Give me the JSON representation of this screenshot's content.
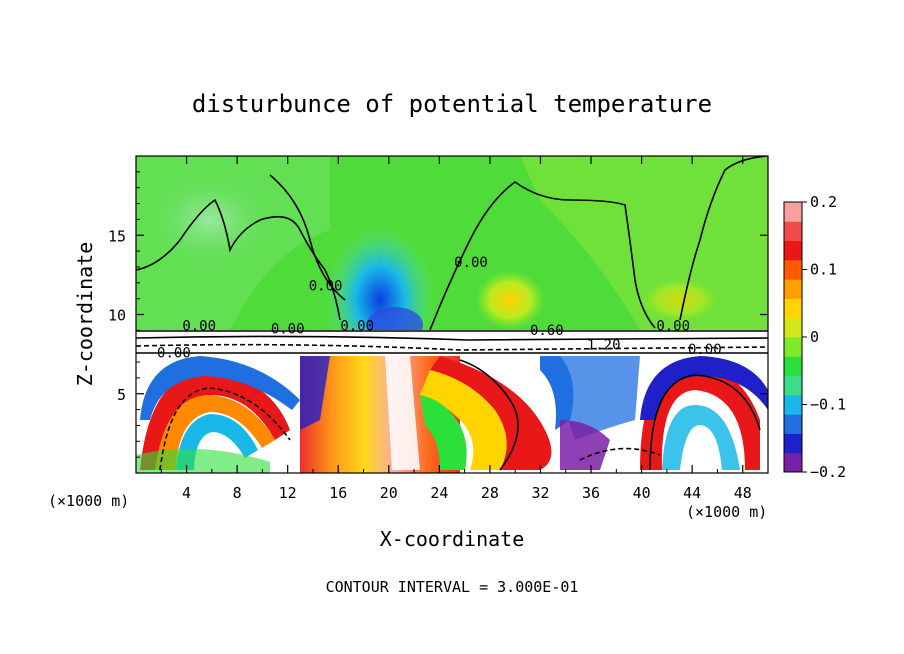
{
  "chart_data": {
    "type": "heatmap",
    "title": "disturbunce of potential temperature",
    "xlabel": "X-coordinate",
    "ylabel": "Z-coordinate",
    "x_unit_label": "(×1000 m)",
    "z_unit_label": "(×1000 m)",
    "xlim": [
      0,
      50
    ],
    "ylim": [
      0,
      20
    ],
    "x_ticks": [
      4,
      8,
      12,
      16,
      20,
      24,
      28,
      32,
      36,
      40,
      44,
      48
    ],
    "y_ticks": [
      5,
      10,
      15
    ],
    "colorbar": {
      "range": [
        -0.2,
        0.2
      ],
      "ticks": [
        -0.2,
        -0.1,
        0,
        0.1,
        0.2
      ],
      "tick_labels": [
        "−0.2",
        "−0.1",
        "0",
        "0.1",
        "0.2"
      ],
      "colors": [
        "#7a1fa8",
        "#2020c8",
        "#1f6fe0",
        "#19b8e8",
        "#3ddc8a",
        "#2ce03c",
        "#7fe82a",
        "#d2e81c",
        "#ffd400",
        "#ffa000",
        "#ff5a00",
        "#e81818",
        "#f04a4a",
        "#f8a0a0"
      ]
    },
    "contour_interval": "CONTOUR INTERVAL = 3.000E-01",
    "contour_labels": [
      {
        "text": "0.00",
        "x": 3,
        "z": 7.3
      },
      {
        "text": "0.00",
        "x": 5,
        "z": 9.0
      },
      {
        "text": "0.00",
        "x": 12,
        "z": 8.8
      },
      {
        "text": "0.00",
        "x": 15,
        "z": 11.5
      },
      {
        "text": "0.00",
        "x": 17.5,
        "z": 9.0
      },
      {
        "text": "0.00",
        "x": 26.5,
        "z": 13.0
      },
      {
        "text": "0.60",
        "x": 32.5,
        "z": 8.7
      },
      {
        "text": "1.20",
        "x": 37,
        "z": 7.8
      },
      {
        "text": "0.00",
        "x": 42.5,
        "z": 9.0
      },
      {
        "text": "0.00",
        "x": 45,
        "z": 7.5
      }
    ]
  }
}
